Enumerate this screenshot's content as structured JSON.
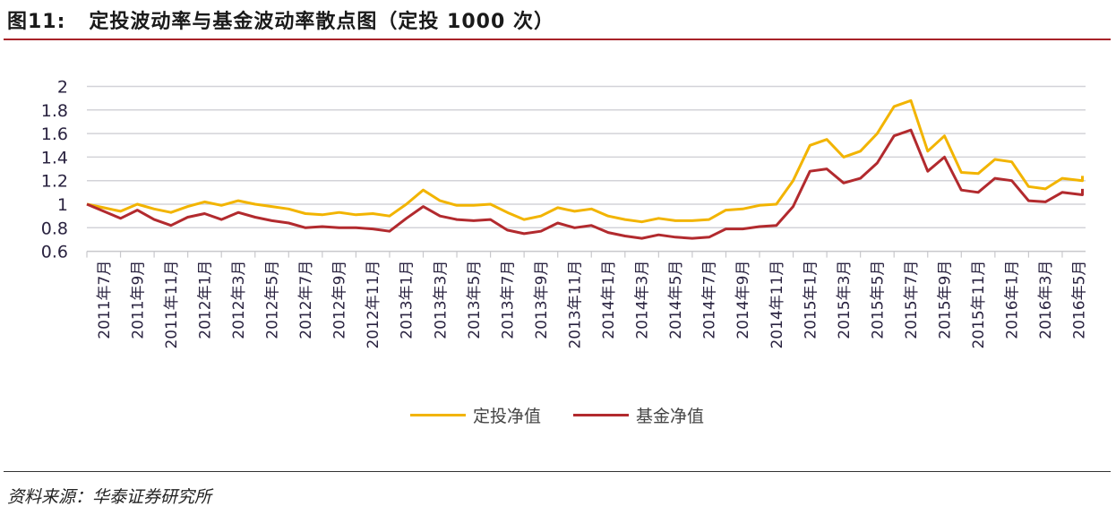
{
  "header": {
    "title": "图11:   定投波动率与基金波动率散点图（定投 1000 次）"
  },
  "footer": {
    "source": "资料来源：华泰证券研究所"
  },
  "legend": [
    {
      "label": "定投净值",
      "color": "#f2b400"
    },
    {
      "label": "基金净值",
      "color": "#b22a2e"
    }
  ],
  "chart_data": {
    "type": "line",
    "title": "定投波动率与基金波动率散点图（定投 1000 次）",
    "xlabel": "",
    "ylabel": "",
    "ylim": [
      0.6,
      2.0
    ],
    "yticks": [
      0.6,
      0.8,
      1,
      1.2,
      1.4,
      1.6,
      1.8,
      2
    ],
    "grid": true,
    "legend_position": "bottom",
    "categories": [
      "2011年7月",
      "2011年9月",
      "2011年11月",
      "2012年1月",
      "2012年3月",
      "2012年5月",
      "2012年7月",
      "2012年9月",
      "2012年11月",
      "2013年1月",
      "2013年3月",
      "2013年5月",
      "2013年7月",
      "2013年9月",
      "2013年11月",
      "2014年1月",
      "2014年3月",
      "2014年5月",
      "2014年7月",
      "2014年9月",
      "2014年11月",
      "2015年1月",
      "2015年3月",
      "2015年5月",
      "2015年7月",
      "2015年9月",
      "2015年11月",
      "2016年1月",
      "2016年3月",
      "2016年5月"
    ],
    "x": [
      0,
      0.5,
      1,
      1.5,
      2,
      2.5,
      3,
      3.5,
      4,
      4.5,
      5,
      5.5,
      6,
      6.5,
      7,
      7.5,
      8,
      8.5,
      9,
      9.5,
      10,
      10.5,
      11,
      11.5,
      12,
      12.5,
      13,
      13.5,
      14,
      14.5,
      15,
      15.5,
      16,
      16.5,
      17,
      17.5,
      18,
      18.5,
      19,
      19.5,
      20,
      20.5,
      21,
      21.5,
      22,
      22.5,
      23,
      23.5,
      24,
      24.5,
      25,
      25.5,
      26,
      26.5,
      27,
      27.5,
      28,
      28.5,
      29,
      29.6
    ],
    "series": [
      {
        "name": "定投净值",
        "color": "#f2b400",
        "values": [
          1.0,
          0.97,
          0.94,
          1.0,
          0.96,
          0.93,
          0.98,
          1.02,
          0.99,
          1.03,
          1.0,
          0.98,
          0.96,
          0.92,
          0.91,
          0.93,
          0.91,
          0.92,
          0.9,
          1.0,
          1.12,
          1.03,
          0.99,
          0.99,
          1.0,
          0.93,
          0.87,
          0.9,
          0.97,
          0.94,
          0.96,
          0.9,
          0.87,
          0.85,
          0.88,
          0.86,
          0.86,
          0.87,
          0.95,
          0.96,
          0.99,
          1.0,
          1.2,
          1.5,
          1.55,
          1.4,
          1.45,
          1.6,
          1.83,
          1.88,
          1.45,
          1.58,
          1.27,
          1.26,
          1.38,
          1.36,
          1.15,
          1.13,
          1.22,
          1.2,
          1.24
        ]
      },
      {
        "name": "基金净值",
        "color": "#b22a2e",
        "values": [
          1.0,
          0.94,
          0.88,
          0.95,
          0.87,
          0.82,
          0.89,
          0.92,
          0.87,
          0.93,
          0.89,
          0.86,
          0.84,
          0.8,
          0.81,
          0.8,
          0.8,
          0.79,
          0.77,
          0.88,
          0.98,
          0.9,
          0.87,
          0.86,
          0.87,
          0.78,
          0.75,
          0.77,
          0.84,
          0.8,
          0.82,
          0.76,
          0.73,
          0.71,
          0.74,
          0.72,
          0.71,
          0.72,
          0.79,
          0.79,
          0.81,
          0.82,
          0.98,
          1.28,
          1.3,
          1.18,
          1.22,
          1.35,
          1.58,
          1.63,
          1.28,
          1.4,
          1.12,
          1.1,
          1.22,
          1.2,
          1.03,
          1.02,
          1.1,
          1.08,
          1.13
        ]
      }
    ]
  }
}
